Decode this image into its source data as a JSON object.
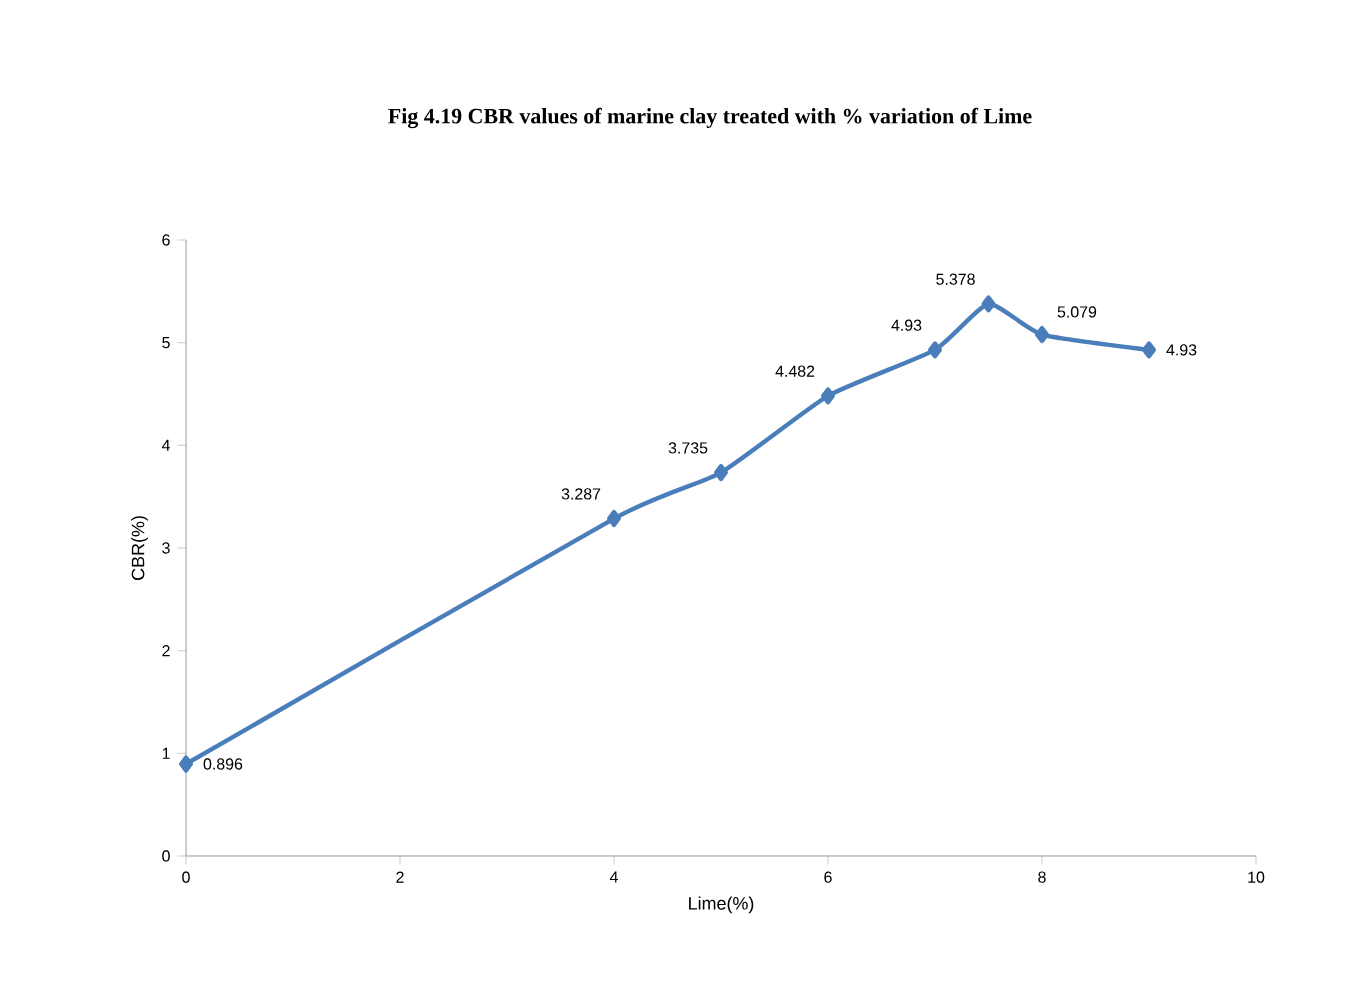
{
  "chart_data": {
    "type": "line",
    "title": "Fig 4.19 CBR values of marine clay treated with % variation of Lime",
    "xlabel": "Lime(%)",
    "ylabel": "CBR(%)",
    "x": [
      0,
      4,
      5,
      6,
      7,
      7.5,
      8,
      9
    ],
    "values": [
      0.896,
      3.287,
      3.735,
      4.482,
      4.93,
      5.378,
      5.079,
      4.93
    ],
    "value_labels": [
      "0.896",
      "3.287",
      "3.735",
      "4.482",
      "4.93",
      "5.378",
      "5.079",
      "4.93"
    ],
    "color": "#4a7ebb",
    "marker": "diamond",
    "line_style": "solid",
    "xlim": [
      0,
      10
    ],
    "xticks": [
      0,
      2,
      4,
      6,
      8,
      10
    ],
    "ylim": [
      0,
      6
    ],
    "yticks": [
      0,
      1,
      2,
      3,
      4,
      5,
      6
    ],
    "grid": false
  }
}
